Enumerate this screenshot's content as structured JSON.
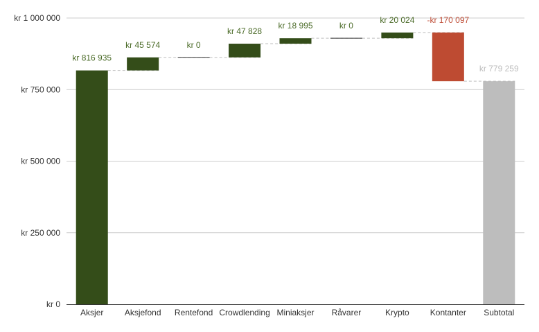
{
  "chart_data": {
    "type": "waterfall",
    "categories": [
      "Aksjer",
      "Aksjefond",
      "Rentefond",
      "Crowdlending",
      "Miniaksjer",
      "Råvarer",
      "Krypto",
      "Kontanter",
      "Subtotal"
    ],
    "values": [
      816935,
      45574,
      0,
      47828,
      18995,
      0,
      20024,
      -170097,
      779259
    ],
    "value_labels": [
      "kr  816 935",
      "kr  45 574",
      "kr   0",
      "kr  47 828",
      "kr  18 995",
      "kr   0",
      "kr  20 024",
      "-kr  170 097",
      "kr  779 259"
    ],
    "is_total": [
      false,
      false,
      false,
      false,
      false,
      false,
      false,
      false,
      true
    ],
    "ylim": [
      0,
      1000000
    ],
    "y_ticks": [
      0,
      250000,
      500000,
      750000,
      1000000
    ],
    "y_tick_labels": [
      "kr   0",
      "kr  250 000",
      "kr  500 000",
      "kr  750 000",
      "kr 1 000 000"
    ],
    "grid": true,
    "connectors": "dashed",
    "colors": {
      "increase": "#344d19",
      "decrease": "#be4b32",
      "total": "#bdbdbd",
      "increase_label": "#4b6b28",
      "decrease_label": "#c0503a",
      "total_label": "#bdbdbd",
      "axis_text": "#333333",
      "gridline": "#cccccc",
      "baseline": "#333333",
      "connector": "#bdbdbd"
    }
  }
}
